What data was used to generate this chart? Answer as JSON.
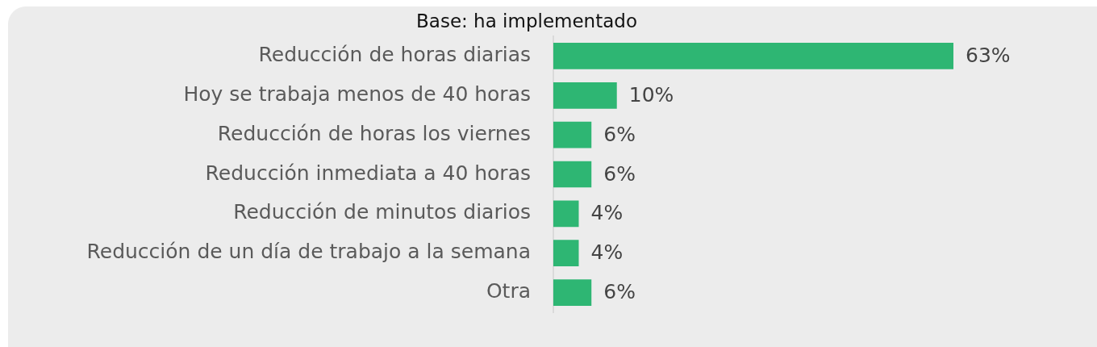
{
  "chart_data": {
    "type": "bar",
    "orientation": "horizontal",
    "title": "Base: ha implementado",
    "categories": [
      "Reducción de horas diarias",
      "Hoy se trabaja menos de 40 horas",
      "Reducción de horas los viernes",
      "Reducción inmediata a 40 horas",
      "Reducción de minutos diarios",
      "Reducción de un día de trabajo a la semana",
      "Otra"
    ],
    "values": [
      63,
      10,
      6,
      6,
      4,
      4,
      6
    ],
    "value_labels": [
      "63%",
      "10%",
      "6%",
      "6%",
      "4%",
      "4%",
      "6%"
    ],
    "color": "#2eb673",
    "tick_labels": "y"
  }
}
